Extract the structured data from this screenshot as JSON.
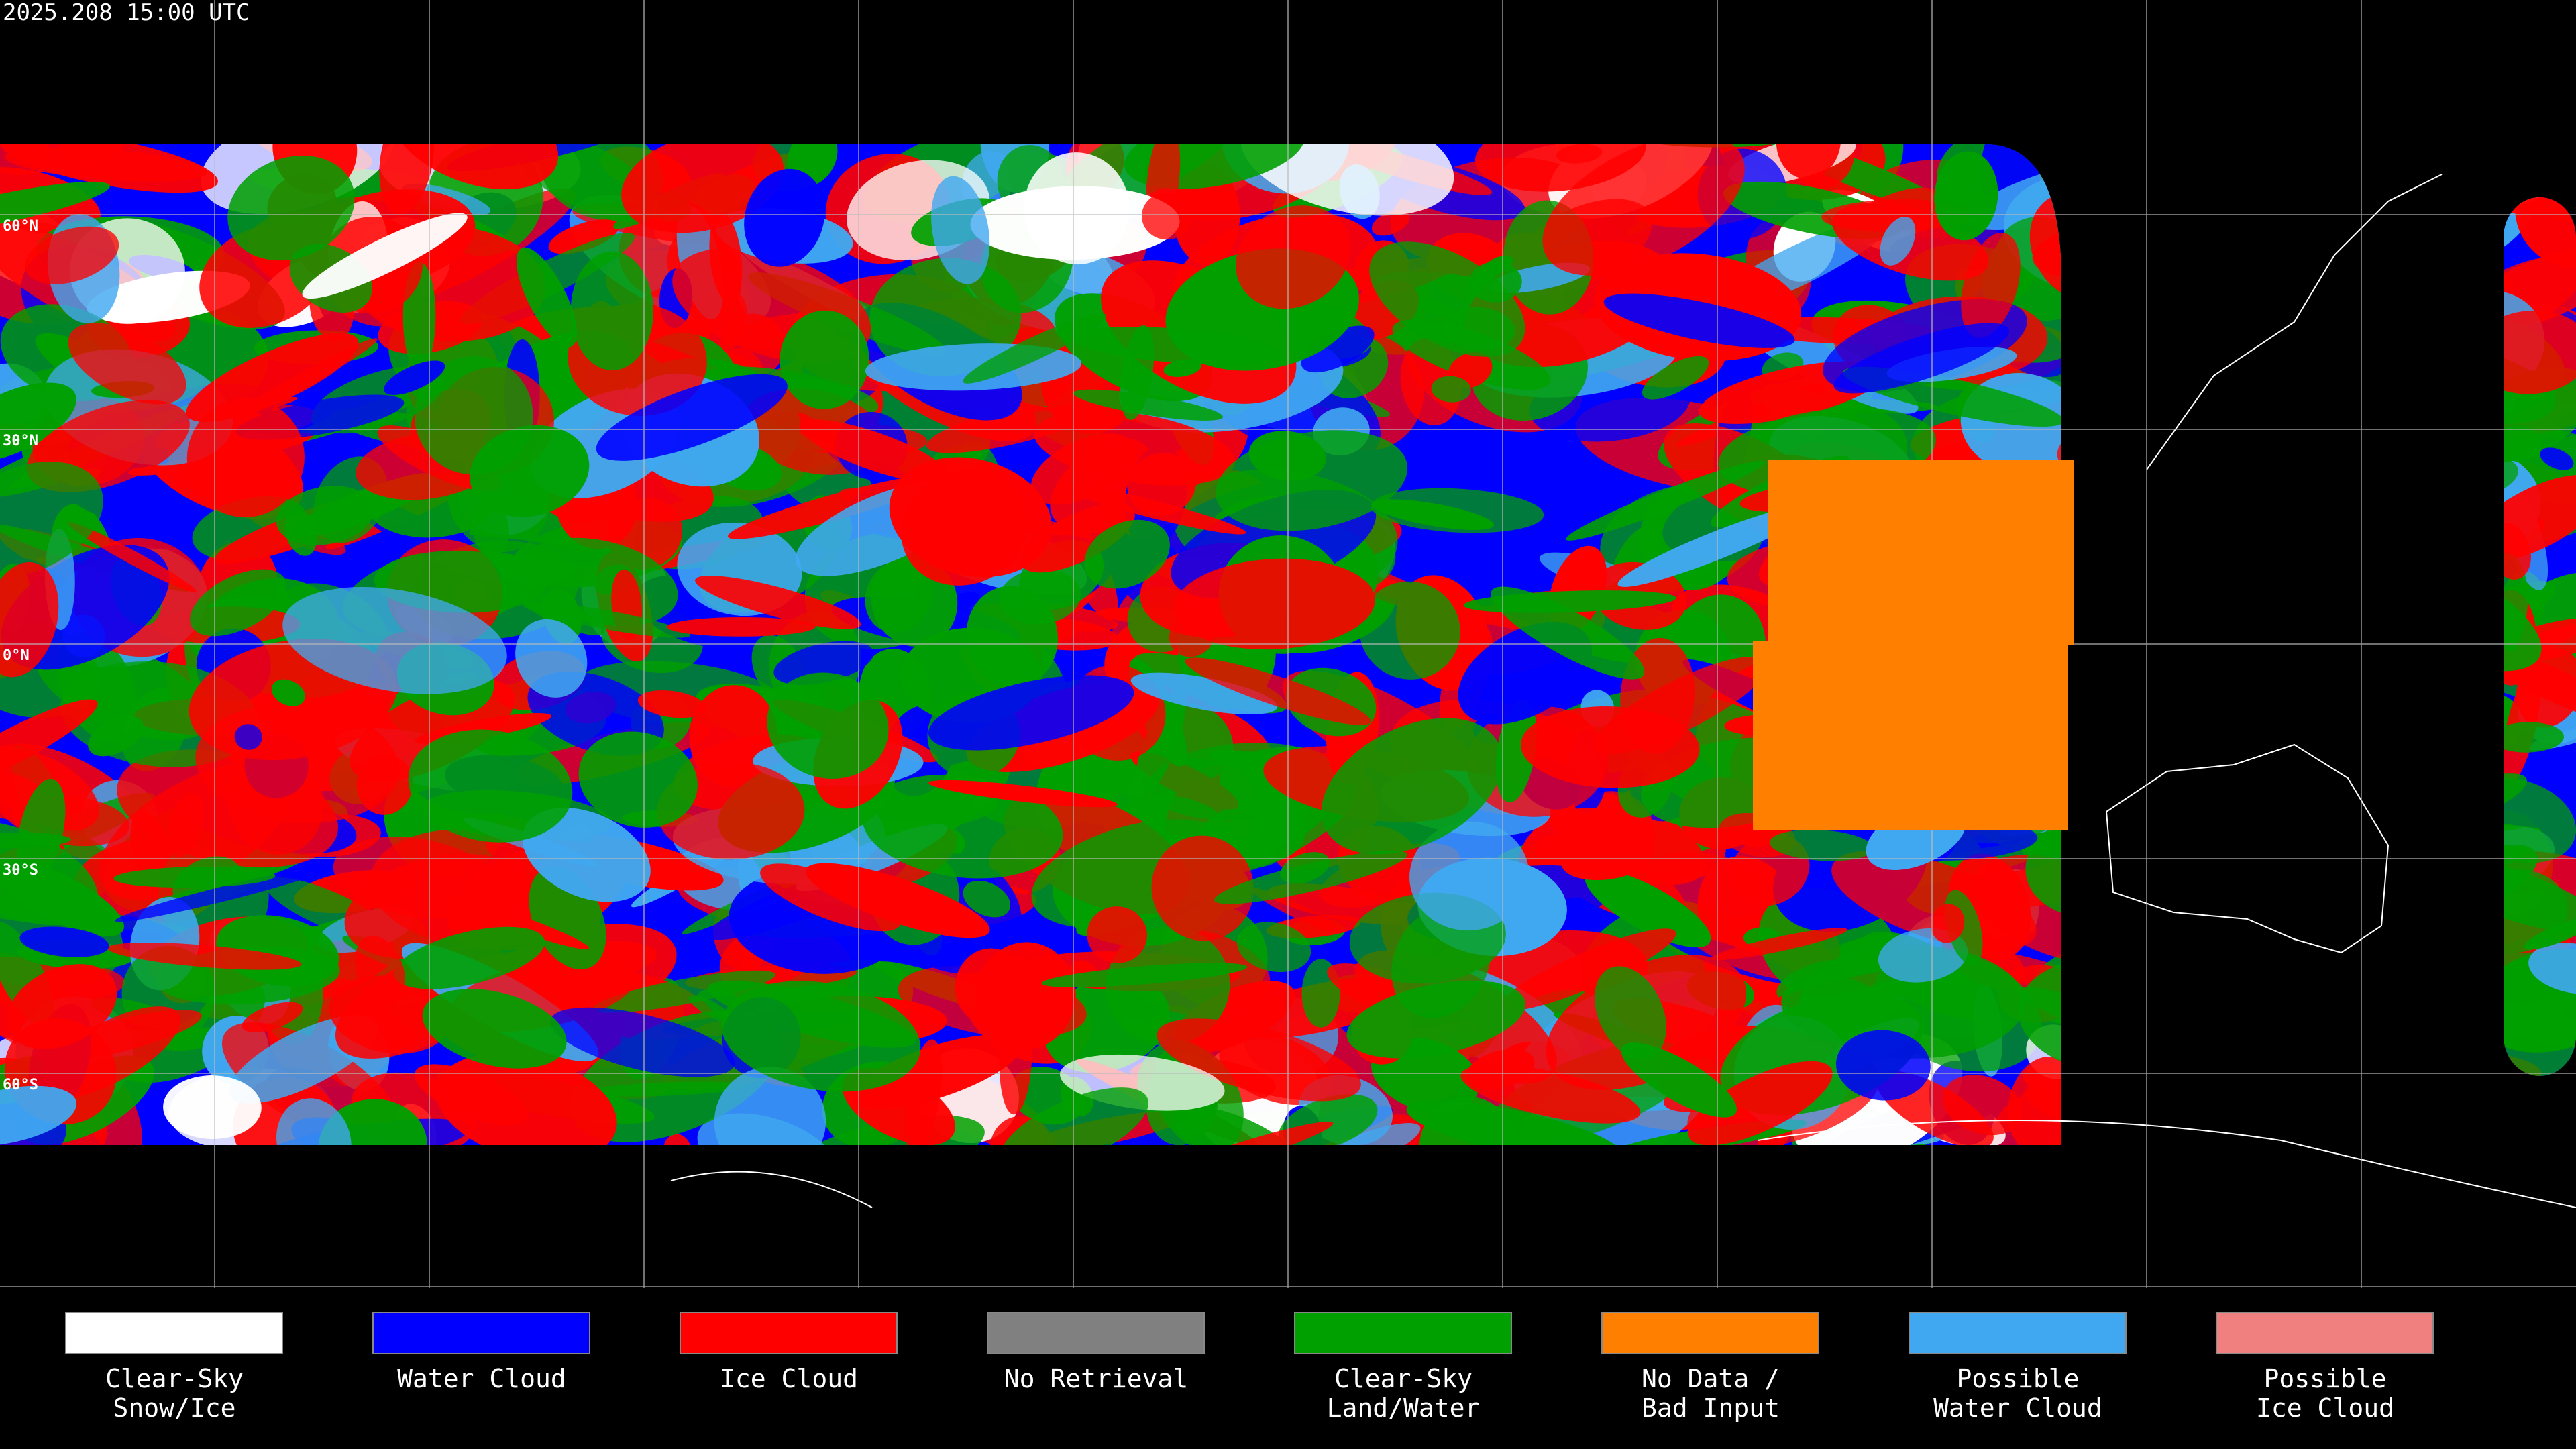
{
  "header": {
    "timestamp": "2025.208 15:00 UTC"
  },
  "map": {
    "lat_labels": [
      "60°N",
      "30°N",
      "0°N",
      "30°S",
      "60°S"
    ]
  },
  "legend": {
    "items": [
      {
        "lines": [
          "Clear-Sky",
          "Snow/Ice"
        ],
        "color": "#ffffff"
      },
      {
        "lines": [
          "Water Cloud"
        ],
        "color": "#0000ff"
      },
      {
        "lines": [
          "Ice Cloud"
        ],
        "color": "#ff0000"
      },
      {
        "lines": [
          "No Retrieval"
        ],
        "color": "#808080"
      },
      {
        "lines": [
          "Clear-Sky",
          "Land/Water"
        ],
        "color": "#00a000"
      },
      {
        "lines": [
          "No Data /",
          "Bad Input"
        ],
        "color": "#ff8000"
      },
      {
        "lines": [
          "Possible",
          "Water Cloud"
        ],
        "color": "#40a8f0"
      },
      {
        "lines": [
          "Possible",
          "Ice Cloud"
        ],
        "color": "#f08080"
      }
    ]
  }
}
